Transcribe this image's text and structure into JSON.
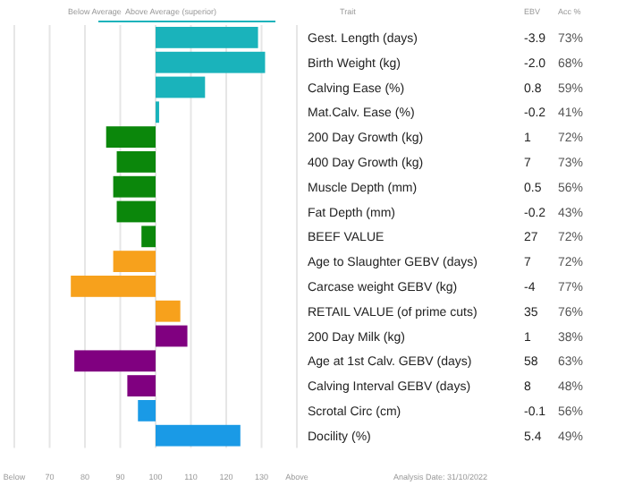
{
  "chart_data": [
    {
      "type": "bar",
      "orientation": "horizontal",
      "ylabel": "Trait",
      "annotations": [
        "Below Average",
        "Above Average (superior)"
      ],
      "categories": [
        "Gest. Length (days)",
        "Birth Weight (kg)",
        "Calving Ease (%)",
        "Mat.Calv. Ease (%)",
        "200 Day Growth (kg)",
        "400 Day Growth (kg)",
        "Muscle Depth (mm)",
        "Fat Depth (mm)",
        "BEEF VALUE",
        "Age to Slaughter GEBV (days)",
        "Carcase weight GEBV (kg)",
        "RETAIL VALUE (of prime cuts)",
        "200 Day Milk (kg)",
        "Age at 1st Calv. GEBV (days)",
        "Calving Interval GEBV (days)",
        "Scrotal Circ (cm)",
        "Docility (%)"
      ],
      "values": [
        29,
        31,
        14,
        1,
        -14,
        -11,
        -12,
        -11,
        -4,
        -12,
        -24,
        7,
        9,
        -23,
        -8,
        -5,
        24
      ],
      "base": [
        100,
        100,
        100,
        100,
        100,
        100,
        100,
        100,
        100,
        100,
        100,
        100,
        100,
        100,
        100,
        100,
        100
      ],
      "colors": [
        "#1ab3bb",
        "#1ab3bb",
        "#1ab3bb",
        "#1ab3bb",
        "#0b870b",
        "#0b870b",
        "#0b870b",
        "#0b870b",
        "#0b870b",
        "#f7a11c",
        "#f7a11c",
        "#f7a11c",
        "#800080",
        "#800080",
        "#800080",
        "#1a9ae6",
        "#1a9ae6"
      ],
      "xlim": [
        60,
        140
      ],
      "xticks": [
        {
          "value": 60,
          "label": "Below"
        },
        70,
        80,
        90,
        100,
        110,
        120,
        130,
        {
          "value": 140,
          "label": "Above"
        }
      ],
      "grid": "x"
    },
    {
      "type": "other",
      "annotations": [
        "EBV",
        "Acc %",
        "-3.9",
        "73%",
        "-2.0",
        "68%",
        "0.8",
        "59%",
        "-0.2",
        "41%",
        "1",
        "72%",
        "7",
        "73%",
        "0.5",
        "56%",
        "-0.2",
        "43%",
        "27",
        "72%",
        "7",
        "72%",
        "-4",
        "77%",
        "35",
        "76%",
        "1",
        "38%",
        "58",
        "63%",
        "8",
        "48%",
        "-0.1",
        "56%",
        "5.4",
        "49%",
        "Analysis Date: 31/10/2022"
      ]
    }
  ]
}
